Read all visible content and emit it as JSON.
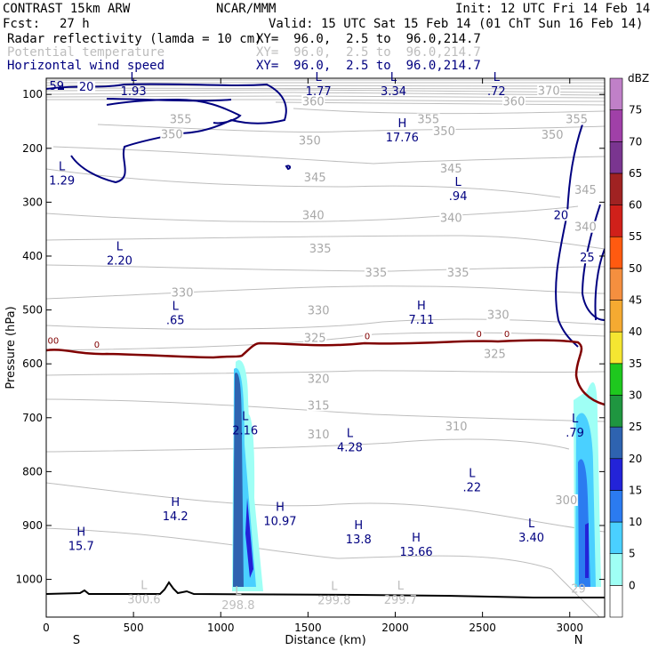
{
  "header": {
    "model": "CONTRAST 15km ARW",
    "org": "NCAR/MMM",
    "init": "Init: 12 UTC Fri 14 Feb 14",
    "fcst_label": "Fcst:",
    "fcst_value": "27 h",
    "valid": "Valid: 15 UTC Sat 15 Feb 14 (01 ChT Sun 16 Feb 14)",
    "fields": [
      {
        "name": "Radar reflectivity (lamda = 10 cm)",
        "xy": "XY=  96.0,  2.5 to  96.0,214.7",
        "color": "#000000"
      },
      {
        "name": "Potential temperature",
        "xy": "XY=  96.0,  2.5 to  96.0,214.7",
        "color": "#bdbdbd"
      },
      {
        "name": "Horizontal wind speed",
        "xy": "XY=  96.0,  2.5 to  96.0,214.7",
        "color": "#000080"
      }
    ]
  },
  "chart_data": {
    "type": "cross-section",
    "xlabel": "Distance (km)",
    "ylabel": "Pressure (hPa)",
    "xlim": [
      0,
      3200
    ],
    "ylim": [
      1070,
      70
    ],
    "xticks": [
      0,
      500,
      1000,
      1500,
      2000,
      2500,
      3000
    ],
    "yticks": [
      100,
      200,
      300,
      400,
      500,
      600,
      700,
      800,
      900,
      1000
    ],
    "endpoints": {
      "left": "S",
      "right": "N"
    },
    "colorbar": {
      "unit": "dBZ",
      "levels": [
        0,
        5,
        10,
        15,
        20,
        25,
        30,
        35,
        40,
        45,
        50,
        55,
        60,
        65,
        70,
        75
      ],
      "colors": [
        "#ffffff",
        "#9ffff5",
        "#4ad0ff",
        "#2b7bf0",
        "#2323d8",
        "#2e63b0",
        "#1f9640",
        "#1ec81e",
        "#f5e631",
        "#f5aa31",
        "#f58f3f",
        "#ff5a10",
        "#d0201a",
        "#a02222",
        "#7a3590",
        "#a040a8",
        "#c080c8"
      ]
    },
    "theta_labels": [
      {
        "v": "370",
        "x": 2880,
        "p": 97
      },
      {
        "v": "360",
        "x": 1530,
        "p": 117
      },
      {
        "v": "360",
        "x": 2680,
        "p": 117
      },
      {
        "v": "355",
        "x": 770,
        "p": 150
      },
      {
        "v": "355",
        "x": 2190,
        "p": 150
      },
      {
        "v": "355",
        "x": 3040,
        "p": 150
      },
      {
        "v": "350",
        "x": 720,
        "p": 178
      },
      {
        "v": "350",
        "x": 1510,
        "p": 190
      },
      {
        "v": "350",
        "x": 2280,
        "p": 172
      },
      {
        "v": "350",
        "x": 2900,
        "p": 179
      },
      {
        "v": "345",
        "x": 1540,
        "p": 258
      },
      {
        "v": "345",
        "x": 2320,
        "p": 242
      },
      {
        "v": "345",
        "x": 3090,
        "p": 281
      },
      {
        "v": "340",
        "x": 1530,
        "p": 328
      },
      {
        "v": "340",
        "x": 2320,
        "p": 333
      },
      {
        "v": "340",
        "x": 3090,
        "p": 350
      },
      {
        "v": "335",
        "x": 1570,
        "p": 390
      },
      {
        "v": "335",
        "x": 1890,
        "p": 435
      },
      {
        "v": "335",
        "x": 2360,
        "p": 435
      },
      {
        "v": "330",
        "x": 780,
        "p": 472
      },
      {
        "v": "330",
        "x": 1560,
        "p": 505
      },
      {
        "v": "330",
        "x": 2590,
        "p": 513
      },
      {
        "v": "325",
        "x": 1540,
        "p": 556
      },
      {
        "v": "325",
        "x": 2570,
        "p": 586
      },
      {
        "v": "320",
        "x": 1560,
        "p": 632
      },
      {
        "v": "315",
        "x": 1560,
        "p": 681
      },
      {
        "v": "310",
        "x": 1560,
        "p": 735
      },
      {
        "v": "310",
        "x": 2350,
        "p": 720
      },
      {
        "v": "300",
        "x": 2980,
        "p": 857
      }
    ],
    "wind_labels": [
      {
        "v": "20",
        "x": 230,
        "p": 90
      },
      {
        "v": "20",
        "x": 2950,
        "p": 328
      },
      {
        "v": "25",
        "x": 3100,
        "p": 407
      }
    ],
    "extrema": [
      {
        "t": "L",
        "v": "1.93",
        "x": 500,
        "p": 78
      },
      {
        "t": "L",
        "v": "1.77",
        "x": 1560,
        "p": 78
      },
      {
        "t": "L",
        "v": "3.34",
        "x": 1990,
        "p": 78
      },
      {
        "t": "L",
        "v": ".72",
        "x": 2580,
        "p": 78
      },
      {
        "t": "L",
        "v": "1.29",
        "x": 90,
        "p": 244
      },
      {
        "t": "H",
        "v": "17.76",
        "x": 2040,
        "p": 164
      },
      {
        "t": "L",
        "v": ".94",
        "x": 2360,
        "p": 273
      },
      {
        "t": "L",
        "v": "2.20",
        "x": 420,
        "p": 393
      },
      {
        "t": "L",
        "v": ".65",
        "x": 740,
        "p": 503
      },
      {
        "t": "H",
        "v": "7.11",
        "x": 2150,
        "p": 502
      },
      {
        "t": "L",
        "v": "2.16",
        "x": 1140,
        "p": 708
      },
      {
        "t": "L",
        "v": ".79",
        "x": 3030,
        "p": 712
      },
      {
        "t": "L",
        "v": "4.28",
        "x": 1740,
        "p": 739
      },
      {
        "t": "L",
        "v": ".22",
        "x": 2440,
        "p": 813
      },
      {
        "t": "H",
        "v": "14.2",
        "x": 740,
        "p": 867
      },
      {
        "t": "H",
        "v": "10.97",
        "x": 1340,
        "p": 876
      },
      {
        "t": "H",
        "v": "15.7",
        "x": 200,
        "p": 922
      },
      {
        "t": "H",
        "v": "13.8",
        "x": 1790,
        "p": 910
      },
      {
        "t": "H",
        "v": "13.66",
        "x": 2120,
        "p": 933
      },
      {
        "t": "L",
        "v": "3.40",
        "x": 2780,
        "p": 907
      }
    ],
    "theta_minima": [
      {
        "t": "L",
        "v": "300.6",
        "x": 560,
        "p": 1021
      },
      {
        "t": "L",
        "v": "298.8",
        "x": 1100,
        "p": 1032
      },
      {
        "t": "L",
        "v": "299.8",
        "x": 1650,
        "p": 1023
      },
      {
        "t": "L",
        "v": "299.7",
        "x": 2030,
        "p": 1022
      }
    ],
    "zero_labels": [
      {
        "v": "00",
        "x": 40,
        "p": 558
      },
      {
        "v": "0",
        "x": 290,
        "p": 565
      },
      {
        "v": "0",
        "x": 1840,
        "p": 549
      },
      {
        "v": "0",
        "x": 2480,
        "p": 545
      },
      {
        "v": "0",
        "x": 2640,
        "p": 545
      }
    ],
    "fragment_labels": [
      {
        "v": "59",
        "x": 60,
        "p": 85,
        "color": "#000080"
      },
      {
        "v": "29",
        "x": 3050,
        "p": 1018,
        "color": "#bdbdbd"
      }
    ]
  }
}
